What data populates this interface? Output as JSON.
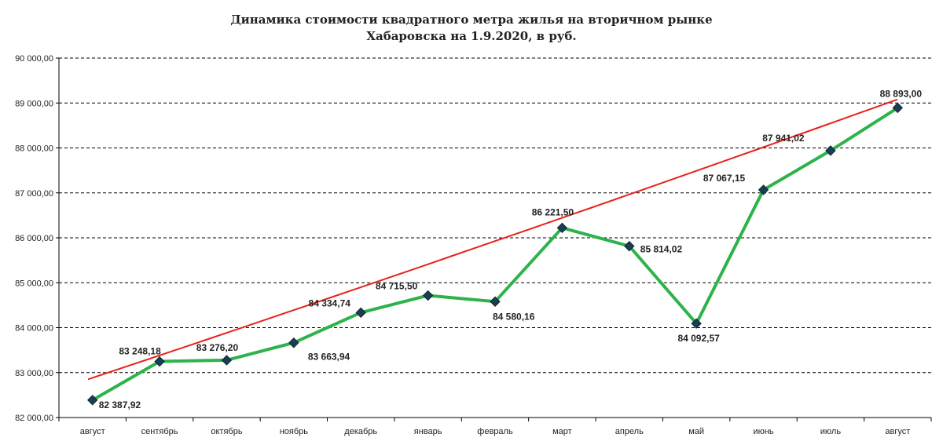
{
  "chart_data": {
    "type": "line",
    "title": "Динамика стоимости квадратного метра жилья на вторичном рынке",
    "subtitle": "Хабаровска на 1.9.2020, в руб.",
    "categories": [
      "август",
      "сентябрь",
      "октябрь",
      "ноябрь",
      "декабрь",
      "январь",
      "февраль",
      "март",
      "апрель",
      "май",
      "июнь",
      "июль",
      "август"
    ],
    "series": [
      {
        "values": [
          82387.92,
          83248.18,
          83276.2,
          83663.94,
          84334.74,
          84715.5,
          84580.16,
          86221.5,
          85814.02,
          84092.57,
          87067.15,
          87941.02,
          88893.0
        ],
        "labels": [
          "82 387,92",
          "83 248,18",
          "83 276,20",
          "83 663,94",
          "84 334,74",
          "84 715,50",
          "84 580,16",
          "86 221,50",
          "85 814,02",
          "84 092,57",
          "87 067,15",
          "87 941,02",
          "88 893,00"
        ],
        "color": "#2db34a",
        "marker_color": "#1a3f52"
      },
      {
        "type": "trendline",
        "color": "#e8221b",
        "start": 82850,
        "end": 89080
      }
    ],
    "yticks": [
      "82 000,00",
      "83 000,00",
      "84 000,00",
      "85 000,00",
      "86 000,00",
      "87 000,00",
      "88 000,00",
      "89 000,00",
      "90 000,00"
    ],
    "ylim": [
      82000,
      90000
    ],
    "grid": true,
    "legend": "none"
  }
}
